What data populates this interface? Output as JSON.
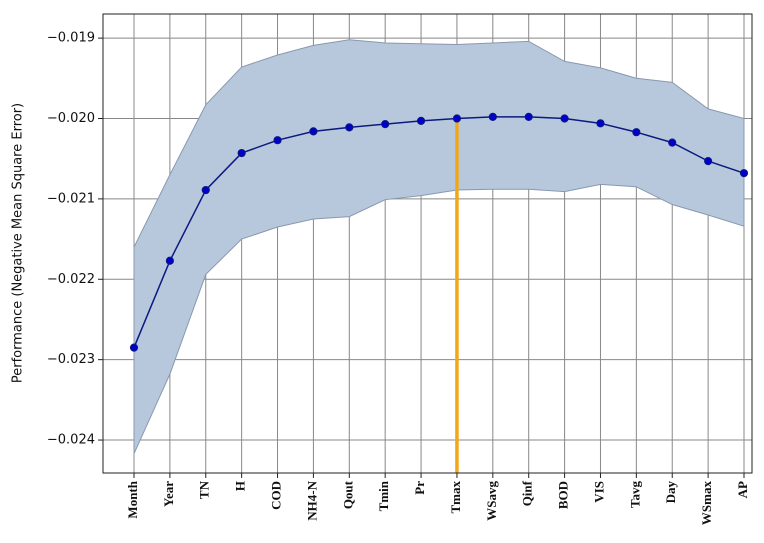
{
  "chart_data": {
    "type": "line",
    "y_label": "Performance (Negative Mean Square Error)",
    "categories": [
      "Month",
      "Year",
      "TN",
      "H",
      "COD",
      "NH4-N",
      "Qout",
      "Tmin",
      "Pr",
      "Tmax",
      "WSavg",
      "Qinf",
      "BOD",
      "VIS",
      "Tavg",
      "Day",
      "WSmax",
      "AP"
    ],
    "values": [
      -0.02285,
      -0.02177,
      -0.02089,
      -0.02043,
      -0.02027,
      -0.02016,
      -0.02011,
      -0.02007,
      -0.02003,
      -0.02,
      -0.01998,
      -0.01998,
      -0.02,
      -0.02006,
      -0.02017,
      -0.0203,
      -0.02053,
      -0.02068
    ],
    "upper": [
      -0.0216,
      -0.0207,
      -0.01983,
      -0.01936,
      -0.01921,
      -0.01909,
      -0.01902,
      -0.01906,
      -0.01907,
      -0.01908,
      -0.01906,
      -0.01904,
      -0.01929,
      -0.01937,
      -0.0195,
      -0.01955,
      -0.01988,
      -0.02
    ],
    "lower": [
      -0.02417,
      -0.02318,
      -0.02194,
      -0.0215,
      -0.02135,
      -0.02125,
      -0.02122,
      -0.02101,
      -0.02096,
      -0.02089,
      -0.02088,
      -0.02088,
      -0.02091,
      -0.02082,
      -0.02085,
      -0.02107,
      -0.0212,
      -0.02134
    ],
    "color": "#0a1a80",
    "marker_color": "#0000c8",
    "band_color": "#b8c8dc",
    "highlight": "Tmax",
    "highlight_color": "#f0a818",
    "ylim": [
      -0.02441,
      -0.0187
    ],
    "yticks": [
      {
        "value": -0.019,
        "label": "−0.019"
      },
      {
        "value": -0.02,
        "label": "−0.020"
      },
      {
        "value": -0.021,
        "label": "−0.021"
      },
      {
        "value": -0.022,
        "label": "−0.022"
      },
      {
        "value": -0.023,
        "label": "−0.023"
      },
      {
        "value": -0.024,
        "label": "−0.024"
      }
    ],
    "grid": true
  }
}
